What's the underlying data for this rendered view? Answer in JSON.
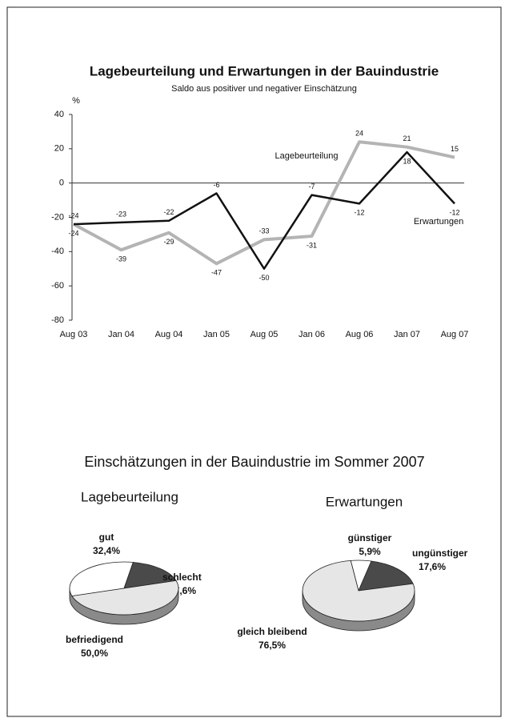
{
  "section_title": "Einschätzungen in der Bauindustrie im Sommer 2007",
  "chart_data": [
    {
      "type": "line",
      "title": "Lagebeurteilung und Erwartungen in der Bauindustrie",
      "subtitle": "Saldo aus positiver und negativer Einschätzung",
      "y_unit": "%",
      "categories": [
        "Aug 03",
        "Jan 04",
        "Aug 04",
        "Jan 05",
        "Aug 05",
        "Jan 06",
        "Aug 06",
        "Jan 07",
        "Aug 07"
      ],
      "series": [
        {
          "name": "Lagebeurteilung",
          "color": "#b4b4b4",
          "values": [
            -24,
            -39,
            -29,
            -47,
            -33,
            -31,
            24,
            21,
            15
          ]
        },
        {
          "name": "Erwartungen",
          "color": "#111111",
          "values": [
            -24,
            -23,
            -22,
            -6,
            -50,
            -7,
            -12,
            18,
            -12
          ]
        }
      ],
      "ylim": [
        -80,
        40
      ],
      "yticks": [
        -80,
        -60,
        -40,
        -20,
        0,
        20,
        40
      ],
      "grid": false
    },
    {
      "type": "pie",
      "title": "Lagebeurteilung",
      "categories": [
        "gut",
        "schlecht",
        "befriedigend"
      ],
      "values": [
        32.4,
        17.6,
        50.0
      ],
      "value_labels": [
        "32,4%",
        "17,6%",
        "50,0%"
      ],
      "colors": [
        "#ffffff",
        "#4a4a4a",
        "#e6e6e6"
      ]
    },
    {
      "type": "pie",
      "title": "Erwartungen",
      "categories": [
        "günstiger",
        "ungünstiger",
        "gleich bleibend"
      ],
      "values": [
        5.9,
        17.6,
        76.5
      ],
      "value_labels": [
        "5,9%",
        "17,6%",
        "76,5%"
      ],
      "colors": [
        "#ffffff",
        "#4a4a4a",
        "#e6e6e6"
      ]
    }
  ]
}
